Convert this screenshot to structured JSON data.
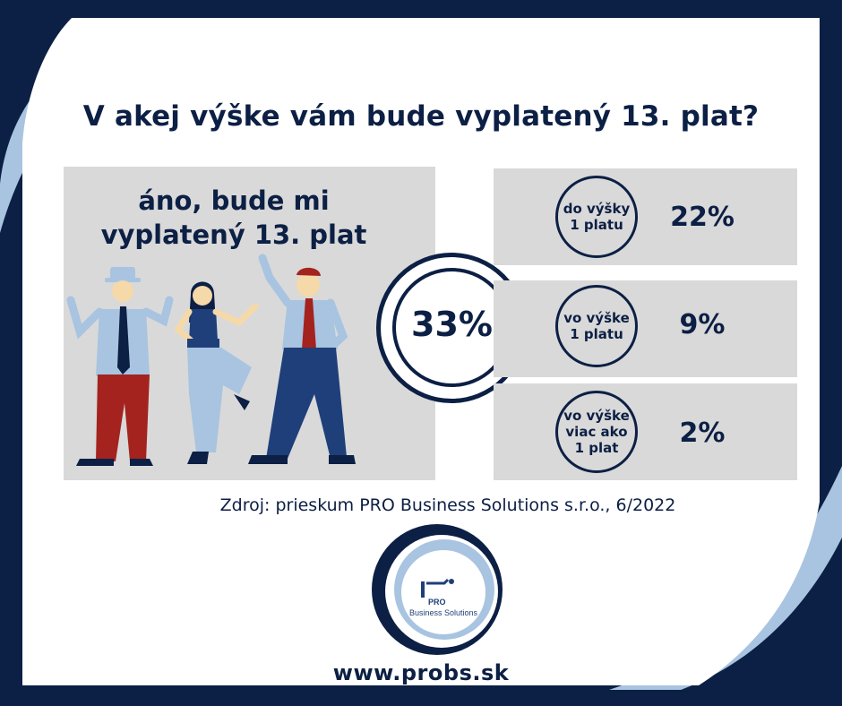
{
  "title": "V akej výške vám bude vyplatený 13. plat?",
  "main_answer": {
    "line1": "áno, bude mi",
    "line2": "vyplatený 13. plat",
    "percent": "33%"
  },
  "breakdown": [
    {
      "label_lines": [
        "do výšky",
        "1 platu"
      ],
      "value": "22%"
    },
    {
      "label_lines": [
        "vo výške",
        "1 platu"
      ],
      "value": "9%"
    },
    {
      "label_lines": [
        "vo výške",
        "viac ako",
        "1 plat"
      ],
      "value": "2%"
    }
  ],
  "source": "Zdroj: prieskum PRO Business Solutions s.r.o., 6/2022",
  "logo": {
    "pro": "PRO",
    "name": "Business Solutions"
  },
  "url": "www.probs.sk",
  "colors": {
    "navy": "#0c1f44",
    "light_blue": "#a8c4e0",
    "panel_gray": "#d9d9d9",
    "red": "#a4231e"
  }
}
